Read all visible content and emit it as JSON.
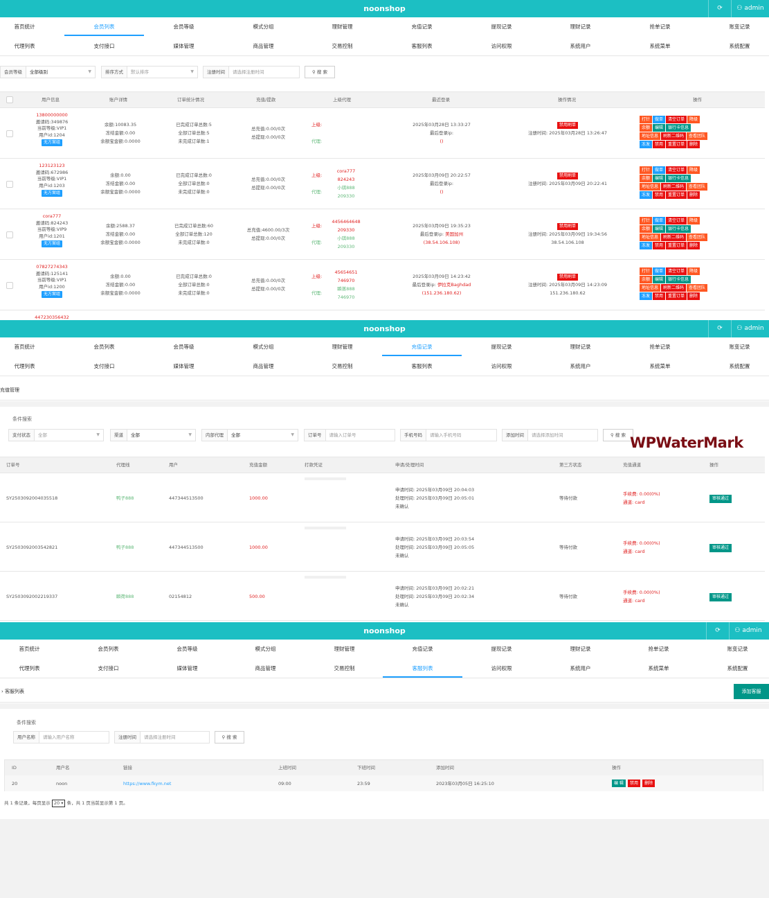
{
  "brand": "noonshop",
  "admin_label": "admin",
  "nav_row1": [
    "首页统计",
    "会员列表",
    "会员等级",
    "模式分组",
    "理财管理",
    "充值记录",
    "提现记录",
    "理财记录",
    "抢单记录",
    "账变记录"
  ],
  "nav_row2": [
    "代理列表",
    "支付接口",
    "媒体管理",
    "商品管理",
    "交易控制",
    "客服列表",
    "访问权限",
    "系统用户",
    "系统菜单",
    "系统配置"
  ],
  "member": {
    "filter": {
      "level_label": "会员等级",
      "level_value": "全部级别",
      "sort_label": "排序方式",
      "sort_value": "默认排序",
      "reg_label": "注册时间",
      "reg_placeholder": "请选择注册时间",
      "search": "搜 索"
    },
    "headers": [
      "用户信息",
      "账户详情",
      "订单统计情况",
      "充值/提款",
      "上级代理",
      "最近登录",
      "操作情况",
      "操作"
    ],
    "rows": [
      {
        "phone": "13800000000",
        "invite": "邀请码:349876",
        "level": "当前等级:VIP1",
        "uid": "用户id:1204",
        "status": "无方案组",
        "balance": "余额:10083.35",
        "frozen": "冻结金额:0.00",
        "earn": "余额宝金额:0.0000",
        "done": "已完成订单总数:5",
        "all": "全部订单总数:5",
        "undone": "未完成订单数:1",
        "rech": "总充值:0.00/0次",
        "wd": "总提现:0.00/0次",
        "up_label": "上级:",
        "up": "",
        "agent_label": "代理:",
        "agent": "",
        "agent_id": "",
        "login": "2025年03月28日 13:33:27",
        "ip_label": "最后登录ip:",
        "ip": "()",
        "op_badge": "禁用刷单",
        "reg": "注册时间: 2025年03月28日 13:26:47",
        "reg_ip": "",
        "actions": [
          "打针",
          "做单",
          "清空订单",
          "降级",
          "余额",
          "编辑",
          "银行卡信息",
          "地址信息",
          "刷新二维码",
          "查看团队",
          "冻发",
          "禁用",
          "重置订单",
          "删除"
        ]
      },
      {
        "phone": "123123123",
        "invite": "邀请码:672986",
        "level": "当前等级:VIP1",
        "uid": "用户id:1203",
        "status": "无方案组",
        "balance": "余额:0.00",
        "frozen": "冻结金额:0.00",
        "earn": "余额宝金额:0.0000",
        "done": "已完成订单总数:0",
        "all": "全部订单总数:0",
        "undone": "未完成订单数:0",
        "rech": "总充值:0.00/0次",
        "wd": "总提现:0.00/0次",
        "up_label": "上级:",
        "up": "cora777",
        "up_id": "824243",
        "agent_label": "代理:",
        "agent": "小琪888",
        "agent_id": "209330",
        "login": "2025年03月09日 20:22:57",
        "ip_label": "最后登录ip:",
        "ip": "()",
        "op_badge": "禁用刷单",
        "reg": "注册时间: 2025年03月09日 20:22:41",
        "reg_ip": "",
        "actions": [
          "打针",
          "做单",
          "清空订单",
          "降级",
          "余额",
          "编辑",
          "银行卡信息",
          "地址信息",
          "刷新二维码",
          "查看团队",
          "冻发",
          "禁用",
          "重置订单",
          "删除"
        ]
      },
      {
        "phone": "cora777",
        "invite": "邀请码:824243",
        "level": "当前等级:VIP9",
        "uid": "用户id:1201",
        "status": "无方案组",
        "balance": "余额:2588.37",
        "frozen": "冻结金额:0.00",
        "earn": "余额宝金额:0.0000",
        "done": "已完成订单总数:60",
        "all": "全部订单总数:120",
        "undone": "未完成订单数:0",
        "rech": "总充值:4600.00/3次",
        "wd": "总提现:0.00/0次",
        "up_label": "上级:",
        "up": "4456464648",
        "up_id": "209330",
        "agent_label": "代理:",
        "agent": "小琪888",
        "agent_id": "209330",
        "login": "2025年03月09日 19:35:23",
        "ip_label": "最后登录ip:",
        "ip": "美国加州",
        "ip2": "(38.54.106.108)",
        "op_badge": "禁用刷单",
        "reg": "注册时间: 2025年03月09日 19:34:56",
        "reg_ip": "38.54.106.108",
        "actions": [
          "打针",
          "做单",
          "清空订单",
          "降级",
          "余额",
          "编辑",
          "银行卡信息",
          "地址信息",
          "刷新二维码",
          "查看团队",
          "冻发",
          "禁用",
          "重置订单",
          "删除"
        ]
      },
      {
        "phone": "07827274343",
        "invite": "邀请码:125141",
        "level": "当前等级:VIP1",
        "uid": "用户id:1200",
        "status": "无方案组",
        "balance": "余额:0.00",
        "frozen": "冻结金额:0.00",
        "earn": "余额宝金额:0.0000",
        "done": "已完成订单总数:0",
        "all": "全部订单总数:0",
        "undone": "未完成订单数:0",
        "rech": "总充值:0.00/0次",
        "wd": "总提现:0.00/0次",
        "up_label": "上级:",
        "up": "45654651",
        "up_id": "746970",
        "agent_label": "代理:",
        "agent": "瞬蒸888",
        "agent_id": "746970",
        "login": "2025年03月09日 14:23:42",
        "ip_label": "最后登录ip:",
        "ip": "伊拉克Baghdad",
        "ip2": "(151.236.180.62)",
        "op_badge": "禁用刷单",
        "reg": "注册时间: 2025年03月09日 14:23:09",
        "reg_ip": "151.236.180.62",
        "actions": [
          "打针",
          "做单",
          "清空订单",
          "降级",
          "余额",
          "编辑",
          "银行卡信息",
          "地址信息",
          "刷新二维码",
          "查看团队",
          "冻发",
          "禁用",
          "重置订单",
          "删除"
        ]
      }
    ],
    "next_phone": "447230356432"
  },
  "recharge": {
    "page_title": "充值管理",
    "panel_title": "条件搜索",
    "filter": {
      "pay_label": "支付状态",
      "pay_value": "全部",
      "channel_label": "渠道",
      "channel_value": "全部",
      "agent_label": "内部代理",
      "agent_value": "全部",
      "order_label": "订单号",
      "order_placeholder": "请输入订单号",
      "phone_label": "手机号码",
      "phone_placeholder": "请输入手机号码",
      "time_label": "添加时间",
      "time_placeholder": "请选择添加时间",
      "search": "搜 索"
    },
    "headers": [
      "订单号",
      "代理线",
      "用户",
      "充值金额",
      "打款凭证",
      "申请/处理时间",
      "第三方状态",
      "充值通道",
      "操作"
    ],
    "rows": [
      {
        "order": "SY2503092004035518",
        "agent": "鸭子888",
        "user": "447344513500",
        "amount": "1000.00",
        "apply": "申请时间: 2025年03月09日 20:04:03",
        "process": "处理时间: 2025年03月09日 20:05:01",
        "confirm": "未确认",
        "status": "等待付款",
        "fee": "手续费: 0.00(0%)",
        "channel": "通道: card",
        "action": "审核通过"
      },
      {
        "order": "SY2503092003542821",
        "agent": "鸭子888",
        "user": "447344513500",
        "amount": "1000.00",
        "apply": "申请时间: 2025年03月09日 20:03:54",
        "process": "处理时间: 2025年03月09日 20:05:05",
        "confirm": "未确认",
        "status": "等待付款",
        "fee": "手续费: 0.00(0%)",
        "channel": "通道: card",
        "action": "审核通过"
      },
      {
        "order": "SY2503092002219337",
        "agent": "瞬荷888",
        "user": "02154812",
        "amount": "500.00",
        "apply": "申请时间: 2025年03月09日 20:02:21",
        "process": "处理时间: 2025年03月09日 20:02:34",
        "confirm": "未确认",
        "status": "等待付款",
        "fee": "手续费: 0.00(0%)",
        "channel": "通道: card",
        "action": "审核通过"
      }
    ]
  },
  "service": {
    "page_title": "客服列表",
    "add_button": "添加客服",
    "panel_title": "条件搜索",
    "filter": {
      "user_label": "用户名称",
      "user_placeholder": "请输入用户名称",
      "reg_label": "注册时间",
      "reg_placeholder": "请选择注册时间",
      "search": "搜 索"
    },
    "headers": [
      "ID",
      "用户名",
      "链接",
      "上班时间",
      "下班时间",
      "添加时间",
      "操作"
    ],
    "rows": [
      {
        "id": "20",
        "name": "noon",
        "link": "https://www.fkym.net",
        "on": "09:00",
        "off": "23:59",
        "added": "2023年03月05日 16:25:10",
        "actions": [
          "编 辑",
          "禁用",
          "删除"
        ]
      }
    ],
    "pager_pre": "共 1 条记录，每页显示",
    "pager_size": "20",
    "pager_post": "条，共 1 页当前显示第 1 页。"
  },
  "watermark": "WPWaterMark",
  "colors": {
    "topbar": "#1cbfc3",
    "active": "#1e9fff",
    "red": "#e02020",
    "green": "#5fb878",
    "teal": "#009688",
    "orange": "#ff5722"
  }
}
